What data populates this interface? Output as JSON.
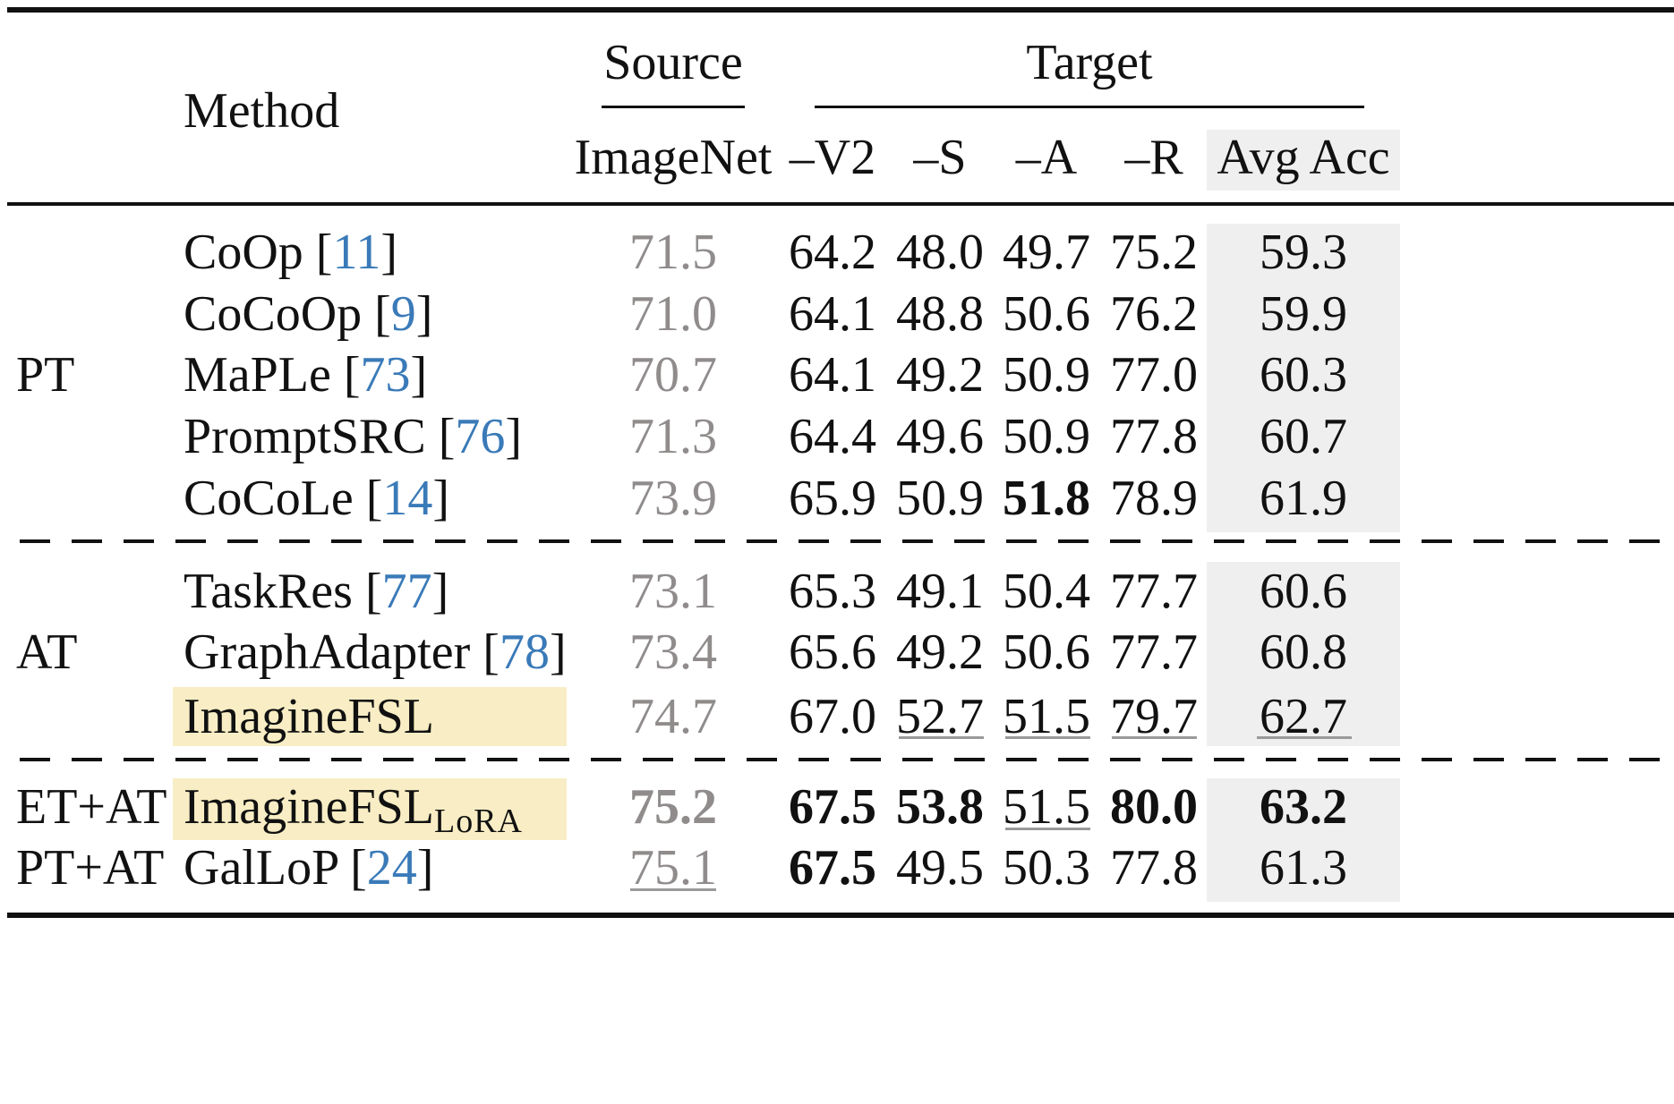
{
  "header": {
    "method": "Method",
    "source": "Source",
    "target": "Target",
    "imagenet": "ImageNet",
    "v2": "–V2",
    "s": "–S",
    "a": "–A",
    "r": "–R",
    "avg": "Avg Acc"
  },
  "groups": {
    "pt": "PT",
    "at": "AT",
    "et_at": "ET+AT",
    "pt_at": "PT+AT"
  },
  "rows": [
    {
      "name": "CoOp [",
      "ref": "11",
      "close": "]",
      "src": "71.5",
      "v2": "64.2",
      "s": "48.0",
      "a": "49.7",
      "r": "75.2",
      "avg": "59.3"
    },
    {
      "name": "CoCoOp [",
      "ref": "9",
      "close": "]",
      "src": "71.0",
      "v2": "64.1",
      "s": "48.8",
      "a": "50.6",
      "r": "76.2",
      "avg": "59.9"
    },
    {
      "name": "MaPLe [",
      "ref": "73",
      "close": "]",
      "src": "70.7",
      "v2": "64.1",
      "s": "49.2",
      "a": "50.9",
      "r": "77.0",
      "avg": "60.3"
    },
    {
      "name": "PromptSRC [",
      "ref": "76",
      "close": "]",
      "src": "71.3",
      "v2": "64.4",
      "s": "49.6",
      "a": "50.9",
      "r": "77.8",
      "avg": "60.7"
    },
    {
      "name": "CoCoLe [",
      "ref": "14",
      "close": "]",
      "src": "73.9",
      "v2": "65.9",
      "s": "50.9",
      "a": "51.8",
      "r": "78.9",
      "avg": "61.9"
    },
    {
      "name": "TaskRes [",
      "ref": "77",
      "close": "]",
      "src": "73.1",
      "v2": "65.3",
      "s": "49.1",
      "a": "50.4",
      "r": "77.7",
      "avg": "60.6"
    },
    {
      "name": "GraphAdapter [",
      "ref": "78",
      "close": "]",
      "src": "73.4",
      "v2": "65.6",
      "s": "49.2",
      "a": "50.6",
      "r": "77.7",
      "avg": "60.8"
    },
    {
      "name": "ImagineFSL",
      "src": "74.7",
      "v2": "67.0",
      "s": "52.7",
      "a": "51.5",
      "r": "79.7",
      "avg": "62.7"
    },
    {
      "name": "ImagineFSL",
      "sub": "LoRA",
      "src": "75.2",
      "v2": "67.5",
      "s": "53.8",
      "a": "51.5",
      "r": "80.0",
      "avg": "63.2"
    },
    {
      "name": "GalLoP [",
      "ref": "24",
      "close": "]",
      "src": "75.1",
      "v2": "67.5",
      "s": "49.5",
      "a": "50.3",
      "r": "77.8",
      "avg": "61.3"
    }
  ],
  "colors": {
    "ref_blue": "#3a7ab8",
    "source_gray": "#908c8c",
    "highlight": "#f8edc4",
    "avg_shade": "#efefef"
  }
}
